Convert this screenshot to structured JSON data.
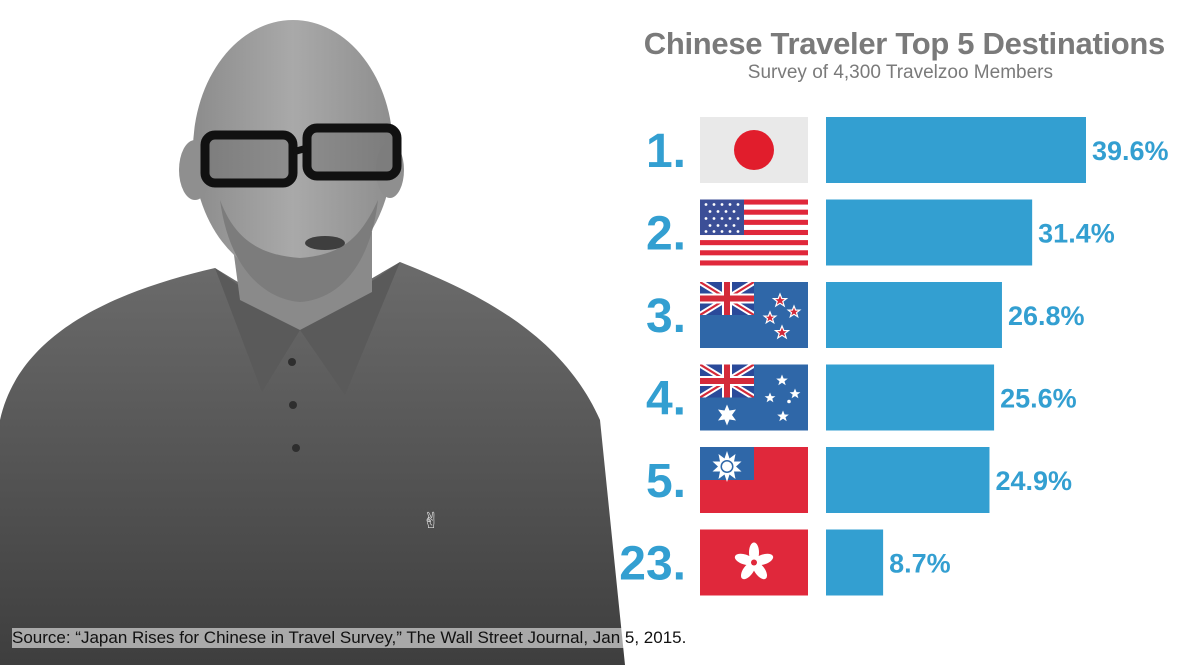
{
  "header": {
    "title": "Chinese Traveler Top 5 Destinations",
    "subtitle": "Survey of 4,300 Travelzoo Members"
  },
  "footer": {
    "source": "Source: “Japan Rises for Chinese in Travel Survey,” The Wall Street Journal, Jan 5, 2015."
  },
  "colors": {
    "accent": "#339fd1",
    "rank_text": "#339fd1",
    "title_text": "#7a7a7a"
  },
  "chart_data": {
    "type": "bar",
    "orientation": "horizontal",
    "title": "Chinese Traveler Top 5 Destinations",
    "subtitle": "Survey of 4,300 Travelzoo Members",
    "categories": [
      "1.",
      "2.",
      "3.",
      "4.",
      "5.",
      "23."
    ],
    "flags": [
      "japan-flag-icon",
      "usa-flag-icon",
      "new-zealand-flag-icon",
      "australia-flag-icon",
      "taiwan-flag-icon",
      "hong-kong-flag-icon"
    ],
    "values": [
      39.6,
      31.4,
      26.8,
      25.6,
      24.9,
      8.7
    ],
    "value_labels": [
      "39.6%",
      "31.4%",
      "26.8%",
      "25.6%",
      "24.9%",
      "8.7%"
    ],
    "unit": "%",
    "xlim": [
      0,
      39.6
    ],
    "grid": false,
    "legend": "none"
  }
}
